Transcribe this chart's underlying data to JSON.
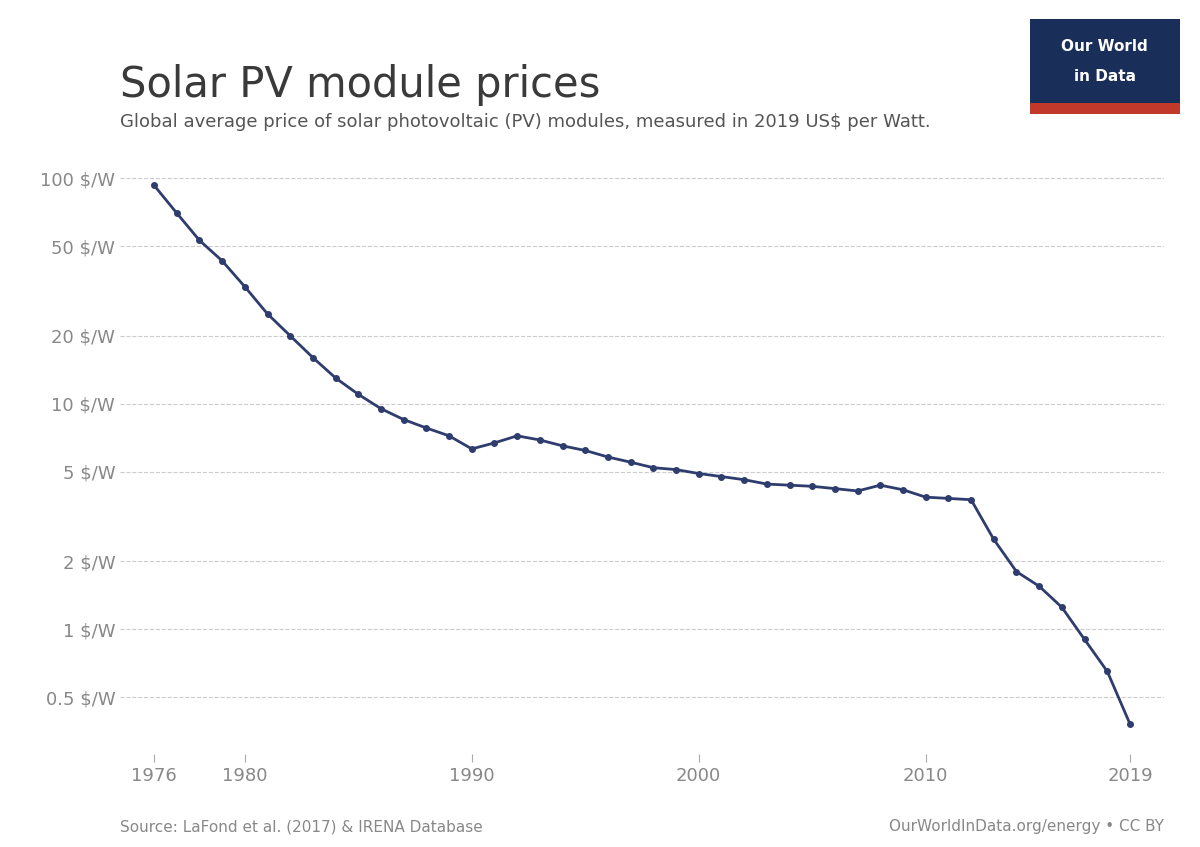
{
  "title": "Solar PV module prices",
  "subtitle": "Global average price of solar photovoltaic (PV) modules, measured in 2019 US$ per Watt.",
  "source_left": "Source: LaFond et al. (2017) & IRENA Database",
  "source_right": "OurWorldInData.org/energy • CC BY",
  "years": [
    1976,
    1977,
    1978,
    1979,
    1980,
    1981,
    1982,
    1983,
    1984,
    1985,
    1986,
    1987,
    1988,
    1989,
    1990,
    1991,
    1992,
    1993,
    1994,
    1995,
    1996,
    1997,
    1998,
    1999,
    2000,
    2001,
    2002,
    2003,
    2004,
    2005,
    2006,
    2007,
    2008,
    2009,
    2010,
    2011,
    2012,
    2013,
    2014,
    2015,
    2016,
    2017,
    2018,
    2019
  ],
  "prices": [
    93.0,
    70.0,
    53.0,
    43.0,
    33.0,
    25.0,
    20.0,
    16.0,
    13.0,
    11.0,
    9.5,
    8.5,
    7.8,
    7.2,
    6.3,
    6.7,
    7.2,
    6.9,
    6.5,
    6.2,
    5.8,
    5.5,
    5.2,
    5.1,
    4.9,
    4.75,
    4.6,
    4.4,
    4.35,
    4.3,
    4.2,
    4.1,
    4.35,
    4.15,
    3.85,
    3.8,
    3.75,
    2.5,
    1.8,
    1.55,
    1.25,
    0.9,
    0.65,
    0.38
  ],
  "line_color": "#2e3d6e",
  "marker_color": "#2e3d6e",
  "background_color": "#ffffff",
  "yticks": [
    0.5,
    1,
    2,
    5,
    10,
    20,
    50,
    100
  ],
  "ytick_labels": [
    "0.5 $/W",
    "1 $/W",
    "2 $/W",
    "5 $/W",
    "10 $/W",
    "20 $/W",
    "50 $/W",
    "100 $/W"
  ],
  "xticks": [
    1976,
    1980,
    1990,
    2000,
    2010,
    2019
  ],
  "ylim_min": 0.28,
  "ylim_max": 130,
  "xlim_min": 1974.5,
  "xlim_max": 2020.5,
  "title_fontsize": 30,
  "subtitle_fontsize": 13,
  "tick_fontsize": 13,
  "source_fontsize": 11,
  "grid_color": "#cccccc",
  "owid_navy": "#1a2e5a",
  "owid_red": "#c0392b",
  "owid_text1": "Our World",
  "owid_text2": "in Data"
}
